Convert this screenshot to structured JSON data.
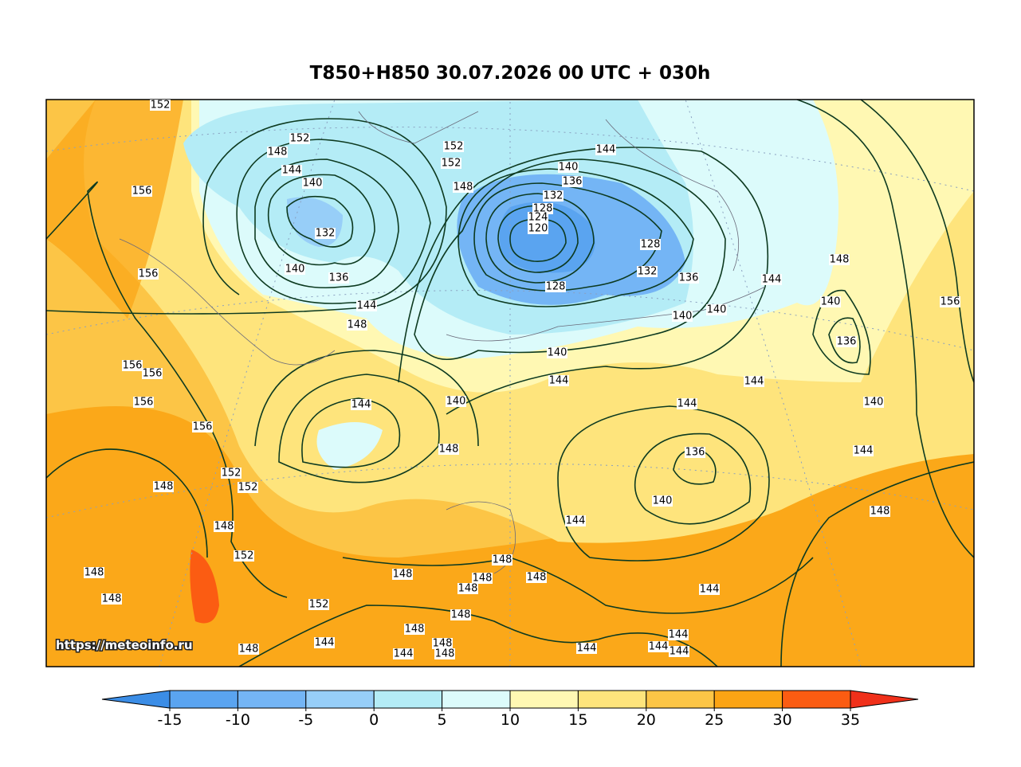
{
  "title": "T850+H850 30.07.2026 00 UTC + 030h",
  "watermark": "https://meteoinfo.ru",
  "contour_labels": [
    152,
    152,
    148,
    144,
    140,
    132,
    140,
    136,
    156,
    156,
    152,
    152,
    148,
    144,
    140,
    136,
    132,
    128,
    124,
    120,
    128,
    132,
    128,
    136,
    140,
    140,
    144,
    148,
    140,
    156,
    136,
    144,
    148,
    140,
    144,
    144,
    140,
    144,
    140,
    156,
    156,
    156,
    156,
    144,
    148,
    136,
    144,
    152,
    152,
    148,
    140,
    148,
    144,
    148,
    152,
    148,
    148,
    148,
    148,
    148,
    148,
    148,
    144,
    152,
    148,
    148,
    144,
    148,
    148,
    144,
    148,
    144,
    144,
    144,
    144
  ],
  "colorbar": {
    "ticks": [
      -15,
      -10,
      -5,
      0,
      5,
      10,
      15,
      20,
      25,
      30,
      35
    ],
    "colors": [
      "#3b8de6",
      "#5aa4f0",
      "#74b5f5",
      "#97cef8",
      "#b4ecf6",
      "#dcfbfb",
      "#fff8b3",
      "#fee47c",
      "#fcc546",
      "#fba414",
      "#fb5c12",
      "#f0301a"
    ]
  }
}
